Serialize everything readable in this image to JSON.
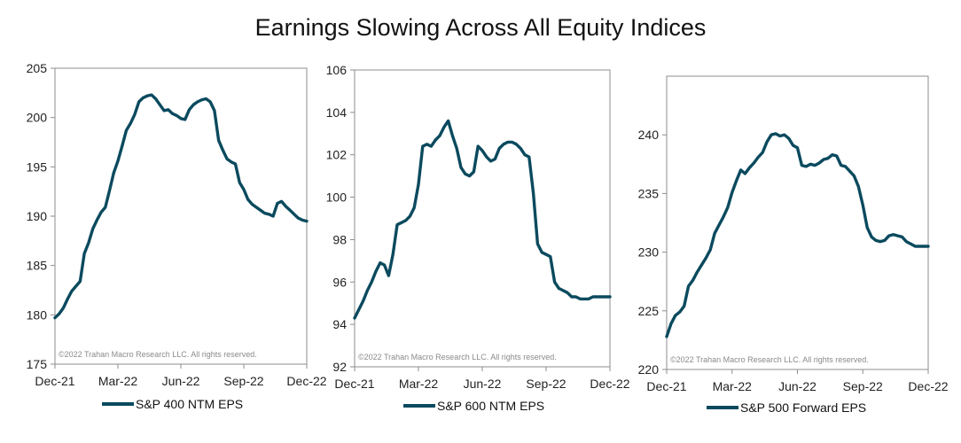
{
  "title": "Earnings Slowing Across All Equity Indices",
  "colors": {
    "line": "#0b4a5e",
    "axis": "#8c8c8c"
  },
  "chart_data": [
    {
      "type": "line",
      "legend": "S&P 400 NTM EPS",
      "copyright": "©2022 Trahan Macro Research LLC. All rights reserved.",
      "xticks": [
        "Dec-21",
        "Mar-22",
        "Jun-22",
        "Sep-22",
        "Dec-22"
      ],
      "xlim": [
        0,
        12
      ],
      "ylim": [
        175,
        205
      ],
      "yticks": [
        175,
        180,
        185,
        190,
        195,
        200,
        205
      ],
      "x": [
        0,
        0.2,
        0.4,
        0.6,
        0.8,
        1.0,
        1.2,
        1.4,
        1.6,
        1.8,
        2.0,
        2.2,
        2.4,
        2.6,
        2.8,
        3.0,
        3.2,
        3.4,
        3.6,
        3.8,
        4.0,
        4.2,
        4.4,
        4.6,
        4.8,
        5.0,
        5.2,
        5.4,
        5.6,
        5.8,
        6.0,
        6.2,
        6.4,
        6.6,
        6.8,
        7.0,
        7.2,
        7.4,
        7.6,
        7.8,
        8.0,
        8.2,
        8.4,
        8.6,
        8.8,
        9.0,
        9.2,
        9.4,
        9.6,
        9.8,
        10.0,
        10.2,
        10.4,
        10.6,
        10.8,
        11.0,
        11.2,
        11.4,
        11.6,
        11.8,
        12.0
      ],
      "values": [
        179.7,
        180.1,
        180.7,
        181.6,
        182.4,
        182.9,
        183.4,
        186.2,
        187.3,
        188.7,
        189.6,
        190.4,
        190.9,
        192.6,
        194.4,
        195.6,
        197.1,
        198.7,
        199.4,
        200.3,
        201.6,
        202.0,
        202.2,
        202.3,
        201.9,
        201.3,
        200.7,
        200.8,
        200.4,
        200.2,
        199.9,
        199.8,
        200.8,
        201.3,
        201.6,
        201.8,
        201.9,
        201.6,
        200.7,
        197.7,
        196.7,
        195.8,
        195.5,
        195.3,
        193.4,
        192.7,
        191.7,
        191.2,
        190.9,
        190.6,
        190.3,
        190.2,
        190.0,
        191.3,
        191.5,
        191.0,
        190.6,
        190.2,
        189.8,
        189.6,
        189.5
      ]
    },
    {
      "type": "line",
      "legend": "S&P 600 NTM EPS",
      "copyright": "©2022 Trahan Macro Research LLC. All rights reserved.",
      "xticks": [
        "Dec-21",
        "Mar-22",
        "Jun-22",
        "Sep-22",
        "Dec-22"
      ],
      "xlim": [
        0,
        12
      ],
      "ylim": [
        92,
        106
      ],
      "yticks": [
        92,
        94,
        96,
        98,
        100,
        102,
        104,
        106
      ],
      "x": [
        0,
        0.2,
        0.4,
        0.6,
        0.8,
        1.0,
        1.2,
        1.4,
        1.6,
        1.8,
        2.0,
        2.2,
        2.4,
        2.6,
        2.8,
        3.0,
        3.2,
        3.4,
        3.6,
        3.8,
        4.0,
        4.2,
        4.4,
        4.6,
        4.8,
        5.0,
        5.2,
        5.4,
        5.6,
        5.8,
        6.0,
        6.2,
        6.4,
        6.6,
        6.8,
        7.0,
        7.2,
        7.4,
        7.6,
        7.8,
        8.0,
        8.2,
        8.4,
        8.6,
        8.8,
        9.0,
        9.2,
        9.4,
        9.6,
        9.8,
        10.0,
        10.2,
        10.4,
        10.6,
        10.8,
        11.0,
        11.2,
        11.4,
        11.6,
        11.8,
        12.0
      ],
      "values": [
        94.3,
        94.7,
        95.1,
        95.6,
        96.0,
        96.5,
        96.9,
        96.8,
        96.3,
        97.3,
        98.7,
        98.8,
        98.9,
        99.1,
        99.5,
        100.6,
        102.4,
        102.5,
        102.4,
        102.7,
        102.9,
        103.3,
        103.6,
        102.9,
        102.3,
        101.4,
        101.1,
        101.0,
        101.2,
        102.4,
        102.2,
        101.9,
        101.7,
        101.8,
        102.3,
        102.5,
        102.6,
        102.6,
        102.5,
        102.3,
        102.0,
        101.9,
        100.2,
        97.8,
        97.4,
        97.3,
        97.2,
        96.0,
        95.7,
        95.6,
        95.5,
        95.3,
        95.3,
        95.2,
        95.2,
        95.2,
        95.3,
        95.3,
        95.3,
        95.3,
        95.3
      ]
    },
    {
      "type": "line",
      "legend": "S&P 500 Forward EPS",
      "copyright": "©2022 Trahan Macro Research LLC. All rights reserved.",
      "xticks": [
        "Dec-21",
        "Mar-22",
        "Jun-22",
        "Sep-22",
        "Dec-22"
      ],
      "xlim": [
        0,
        12
      ],
      "ylim": [
        220,
        245
      ],
      "yticks": [
        220,
        225,
        230,
        235,
        240
      ],
      "x": [
        0,
        0.2,
        0.4,
        0.6,
        0.8,
        1.0,
        1.2,
        1.4,
        1.6,
        1.8,
        2.0,
        2.2,
        2.4,
        2.6,
        2.8,
        3.0,
        3.2,
        3.4,
        3.6,
        3.8,
        4.0,
        4.2,
        4.4,
        4.6,
        4.8,
        5.0,
        5.2,
        5.4,
        5.6,
        5.8,
        6.0,
        6.2,
        6.4,
        6.6,
        6.8,
        7.0,
        7.2,
        7.4,
        7.6,
        7.8,
        8.0,
        8.2,
        8.4,
        8.6,
        8.8,
        9.0,
        9.2,
        9.4,
        9.6,
        9.8,
        10.0,
        10.2,
        10.4,
        10.6,
        10.8,
        11.0,
        11.2,
        11.4,
        11.6,
        11.8,
        12.0
      ],
      "values": [
        222.8,
        223.9,
        224.6,
        224.9,
        225.4,
        227.1,
        227.6,
        228.3,
        228.9,
        229.5,
        230.2,
        231.6,
        232.3,
        233.0,
        233.8,
        235.1,
        236.1,
        237.0,
        236.7,
        237.2,
        237.6,
        238.1,
        238.5,
        239.4,
        240.0,
        240.1,
        239.9,
        240.0,
        239.7,
        239.1,
        238.9,
        237.4,
        237.3,
        237.5,
        237.4,
        237.6,
        237.9,
        238.0,
        238.3,
        238.2,
        237.4,
        237.3,
        236.9,
        236.5,
        235.6,
        234.0,
        232.1,
        231.3,
        231.0,
        230.9,
        231.0,
        231.4,
        231.5,
        231.4,
        231.3,
        230.9,
        230.7,
        230.5,
        230.5,
        230.5,
        230.5
      ]
    }
  ]
}
